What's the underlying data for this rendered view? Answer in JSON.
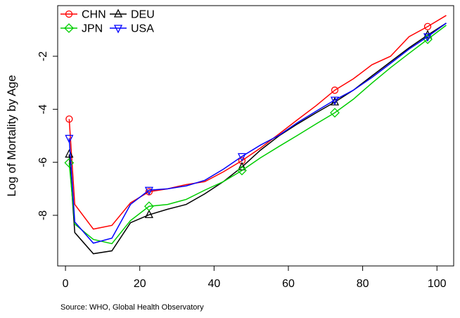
{
  "chart_data": {
    "type": "line",
    "y_label": "Log of Mortality by Age",
    "source": "Source: WHO, Global Health Observatory",
    "x": [
      1,
      2.5,
      7.5,
      12.5,
      17.5,
      22.5,
      27.5,
      32.5,
      37.5,
      42.5,
      47.5,
      52.5,
      57.5,
      62.5,
      67.5,
      72.5,
      77.5,
      82.5,
      87.5,
      92.5,
      97.5,
      102.5
    ],
    "series": [
      {
        "name": "CHN",
        "color": "#ff0000",
        "marker": "circle",
        "values": [
          -4.37,
          -7.59,
          -8.52,
          -8.38,
          -7.53,
          -7.11,
          -7.0,
          -6.84,
          -6.73,
          -6.36,
          -5.94,
          -5.46,
          -4.93,
          -4.39,
          -3.86,
          -3.28,
          -2.85,
          -2.32,
          -2.0,
          -1.26,
          -0.88,
          -0.46
        ]
      },
      {
        "name": "DEU",
        "color": "#000000",
        "marker": "triangle",
        "values": [
          -5.7,
          -8.65,
          -9.45,
          -9.34,
          -8.28,
          -7.98,
          -7.77,
          -7.59,
          -7.19,
          -6.73,
          -6.18,
          -5.54,
          -5.0,
          -4.55,
          -4.13,
          -3.73,
          -3.28,
          -2.74,
          -2.21,
          -1.68,
          -1.2,
          -0.75
        ]
      },
      {
        "name": "JPN",
        "color": "#00cd00",
        "marker": "diamond",
        "values": [
          -6.02,
          -8.33,
          -8.91,
          -9.07,
          -8.2,
          -7.66,
          -7.59,
          -7.4,
          -7.05,
          -6.73,
          -6.31,
          -5.83,
          -5.4,
          -4.98,
          -4.55,
          -4.13,
          -3.62,
          -3.01,
          -2.43,
          -1.89,
          -1.36,
          -0.83
        ]
      },
      {
        "name": "USA",
        "color": "#0000ff",
        "marker": "triangle-down",
        "values": [
          -5.09,
          -8.25,
          -9.05,
          -8.86,
          -7.59,
          -7.05,
          -7.0,
          -6.89,
          -6.68,
          -6.26,
          -5.78,
          -5.35,
          -4.98,
          -4.5,
          -4.07,
          -3.65,
          -3.28,
          -2.8,
          -2.27,
          -1.73,
          -1.26,
          -0.75
        ]
      }
    ],
    "marker_every": 5,
    "xlim": [
      -2.1,
      104.5
    ],
    "xticks": [
      0,
      20,
      40,
      60,
      80,
      100
    ],
    "ylim": [
      -9.91,
      -0.09
    ],
    "yticks": [
      -8,
      -6,
      -4,
      -2
    ],
    "legend": "top-left",
    "legend_columns": 2
  }
}
